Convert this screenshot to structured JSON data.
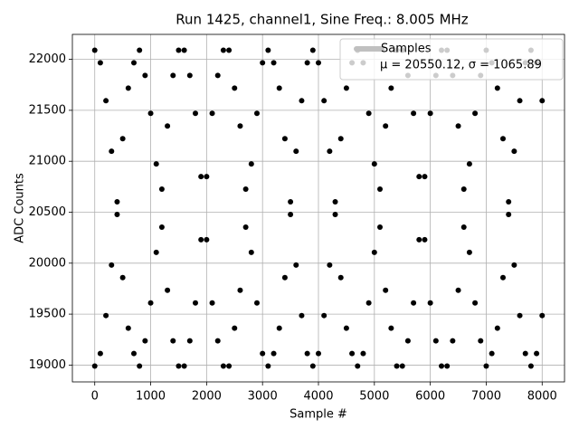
{
  "chart_data": {
    "type": "scatter",
    "title": "Run 1425, channel1, Sine Freq.: 8.005 MHz",
    "xlabel": "Sample #",
    "ylabel": "ADC Counts",
    "annotation": "μ = 20550.12, σ = 1065.89",
    "series": [
      {
        "name": "Samples",
        "color": "#000000",
        "legend_color": "#c0c0c0",
        "x": [
          0,
          100,
          200,
          300,
          400,
          500,
          600,
          700,
          800,
          900,
          1000,
          1100,
          1200,
          1300,
          1400,
          1500,
          1600,
          1700,
          1800,
          1900,
          2000,
          2100,
          2200,
          2300,
          2400,
          2500,
          2600,
          2700,
          2800,
          2900,
          3000,
          3100,
          3200,
          3300,
          3400,
          3500,
          3600,
          3700,
          3800,
          3900,
          4000,
          4100,
          4200,
          4300,
          4400,
          4500,
          4600,
          4700,
          4800,
          4900,
          5000,
          5100,
          5200,
          5300,
          5400,
          5500,
          5600,
          5700,
          5800,
          5900,
          6000,
          6100,
          6200,
          6300,
          6400,
          6500,
          6600,
          6700,
          6800,
          6900,
          7000,
          7100,
          7200,
          7300,
          7400,
          7500,
          7600,
          7700,
          7800,
          7900,
          8000,
          0,
          100,
          200,
          300,
          400,
          500,
          600,
          700,
          800,
          900,
          1000,
          1100,
          1200,
          1300,
          1400,
          1500,
          1600,
          1700,
          1800,
          1900,
          2000,
          2100,
          2200,
          2300,
          2400,
          2500,
          2600,
          2700,
          2800,
          2900,
          3000,
          3100,
          3200,
          3300,
          3400,
          3500,
          3600,
          3700,
          3800,
          3900,
          4000,
          4100,
          4200,
          4300,
          4400,
          4500,
          4600,
          4700,
          4800,
          4900,
          5000,
          5100,
          5200,
          5300,
          5400,
          5500,
          5600,
          5700,
          5800,
          5900,
          6000,
          6100,
          6200,
          6300,
          6400,
          6500,
          6600,
          6700,
          6800,
          6900,
          7000,
          7100,
          7200,
          7300,
          7400,
          7500,
          7600,
          7700,
          7800,
          7900,
          8000
        ],
        "values": [
          22090,
          21966,
          21594,
          21098,
          20478,
          19858,
          19362,
          19114,
          18990,
          19238,
          19610,
          20106,
          20726,
          21346,
          21842,
          22090,
          22090,
          21842,
          21470,
          20850,
          20230,
          19610,
          19238,
          18990,
          18990,
          19362,
          19734,
          20354,
          20974,
          21470,
          21966,
          22090,
          21966,
          21718,
          21222,
          20602,
          19982,
          19486,
          19114,
          18990,
          19114,
          19486,
          19982,
          20602,
          21222,
          21718,
          21966,
          22090,
          21966,
          21470,
          20974,
          20354,
          19734,
          19362,
          18990,
          18990,
          19238,
          19610,
          20230,
          20850,
          21470,
          21842,
          22090,
          22090,
          21842,
          21346,
          20726,
          20106,
          19610,
          19238,
          18990,
          19114,
          19362,
          19858,
          20478,
          21098,
          21594,
          21966,
          22090,
          21966,
          21594,
          18990,
          19114,
          19486,
          19982,
          20602,
          21222,
          21718,
          21966,
          22090,
          21842,
          21470,
          20974,
          20354,
          19734,
          19238,
          18990,
          18990,
          19238,
          19610,
          20230,
          20850,
          21470,
          21842,
          22090,
          22090,
          21718,
          21346,
          20726,
          20106,
          19610,
          19114,
          18990,
          19114,
          19362,
          19858,
          20478,
          21098,
          21594,
          21966,
          22090,
          21966,
          21594,
          21098,
          20478,
          19858,
          19362,
          19114,
          18990,
          19114,
          19610,
          20106,
          20726,
          21346,
          21718,
          22090,
          22090,
          21842,
          21470,
          20850,
          20230,
          19610,
          19238,
          18990,
          18990,
          19238,
          19734,
          20354,
          20974,
          21470,
          21842,
          22090,
          21966,
          21718,
          21222,
          20602,
          19982,
          19486,
          19114,
          18990,
          19114,
          19486
        ]
      }
    ],
    "xlim": [
      -400,
      8400
    ],
    "xticks": [
      0,
      1000,
      2000,
      3000,
      4000,
      5000,
      6000,
      7000,
      8000
    ],
    "ylim": [
      18835,
      22245
    ],
    "yticks": [
      19000,
      19500,
      20000,
      20500,
      21000,
      21500,
      22000
    ],
    "grid": true,
    "legend": "upper right"
  }
}
